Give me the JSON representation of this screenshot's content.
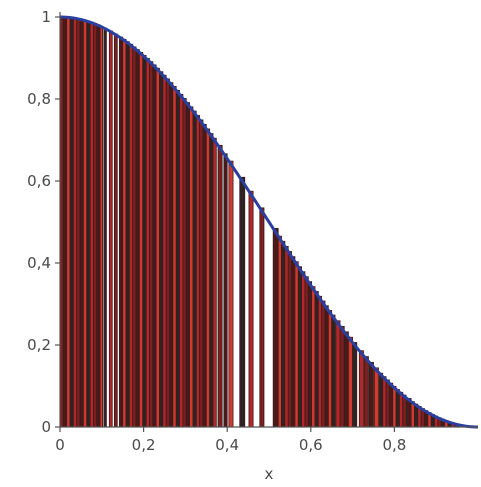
{
  "chart_data": {
    "type": "bar",
    "title": "",
    "xlabel": "x",
    "ylabel": "",
    "xlim": [
      0,
      1
    ],
    "ylim": [
      0,
      1
    ],
    "x_ticks": [
      0,
      0.2,
      0.4,
      0.6,
      0.8
    ],
    "x_tick_labels": [
      "0",
      "0,2",
      "0,4",
      "0,6",
      "0,8"
    ],
    "y_ticks": [
      0,
      0.2,
      0.4,
      0.6,
      0.8,
      1
    ],
    "y_tick_labels": [
      "0",
      "0,2",
      "0,4",
      "0,6",
      "0,8",
      "1"
    ],
    "grid": false,
    "curve": {
      "function": "cos(pi*x/2)^2",
      "color": "#2b3f9e"
    },
    "bars": {
      "description_fn": "height = cos(pi*x/2)^2 at bar's left edge",
      "edge_color": "#3a1c1c",
      "colors": [
        "#4a1a1a",
        "#b3262a",
        "#d33a2e",
        "#7a2020",
        "#2f2424"
      ],
      "gap_color": "#ffffff",
      "x": [
        0.0,
        0.008,
        0.016,
        0.024,
        0.032,
        0.04,
        0.048,
        0.056,
        0.064,
        0.072,
        0.08,
        0.088,
        0.096,
        0.105,
        0.118,
        0.13,
        0.142,
        0.15,
        0.158,
        0.166,
        0.174,
        0.182,
        0.19,
        0.198,
        0.206,
        0.214,
        0.222,
        0.23,
        0.238,
        0.246,
        0.254,
        0.262,
        0.27,
        0.278,
        0.286,
        0.294,
        0.302,
        0.31,
        0.318,
        0.326,
        0.334,
        0.342,
        0.35,
        0.358,
        0.366,
        0.378,
        0.392,
        0.404,
        0.43,
        0.452,
        0.478,
        0.51,
        0.522,
        0.53,
        0.538,
        0.546,
        0.554,
        0.562,
        0.57,
        0.578,
        0.586,
        0.594,
        0.602,
        0.61,
        0.618,
        0.626,
        0.634,
        0.642,
        0.65,
        0.66,
        0.67,
        0.68,
        0.69,
        0.7,
        0.716,
        0.728,
        0.74,
        0.752,
        0.764,
        0.772,
        0.78,
        0.788,
        0.796,
        0.804,
        0.812,
        0.82,
        0.83,
        0.84,
        0.848,
        0.856,
        0.864,
        0.872,
        0.88,
        0.888,
        0.896,
        0.904,
        0.912,
        0.92,
        0.928,
        0.936,
        0.944,
        0.952,
        0.96,
        0.97,
        0.98
      ],
      "widths": [
        0.008,
        0.008,
        0.008,
        0.008,
        0.008,
        0.008,
        0.008,
        0.008,
        0.008,
        0.008,
        0.008,
        0.008,
        0.006,
        0.006,
        0.007,
        0.007,
        0.008,
        0.008,
        0.008,
        0.008,
        0.008,
        0.008,
        0.008,
        0.008,
        0.008,
        0.008,
        0.008,
        0.008,
        0.008,
        0.008,
        0.008,
        0.008,
        0.008,
        0.008,
        0.008,
        0.008,
        0.008,
        0.008,
        0.008,
        0.008,
        0.008,
        0.008,
        0.008,
        0.008,
        0.008,
        0.01,
        0.008,
        0.01,
        0.012,
        0.01,
        0.01,
        0.012,
        0.008,
        0.008,
        0.008,
        0.008,
        0.008,
        0.008,
        0.008,
        0.008,
        0.008,
        0.008,
        0.008,
        0.008,
        0.008,
        0.008,
        0.008,
        0.008,
        0.008,
        0.01,
        0.01,
        0.01,
        0.01,
        0.01,
        0.01,
        0.01,
        0.01,
        0.01,
        0.008,
        0.008,
        0.008,
        0.008,
        0.008,
        0.008,
        0.008,
        0.008,
        0.01,
        0.008,
        0.008,
        0.008,
        0.008,
        0.008,
        0.008,
        0.008,
        0.008,
        0.008,
        0.008,
        0.008,
        0.008,
        0.008,
        0.008,
        0.008,
        0.008,
        0.01,
        0.01
      ]
    }
  }
}
